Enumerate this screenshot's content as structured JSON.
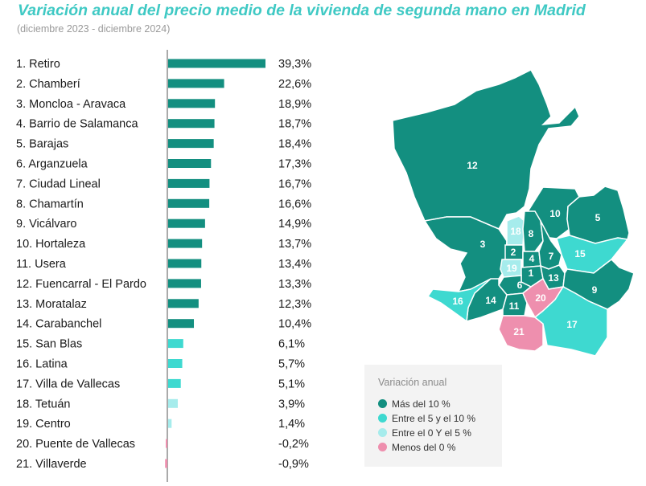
{
  "title": "Variación anual del precio medio de la vivienda de segunda mano en Madrid",
  "subtitle": "(diciembre 2023 - diciembre 2024)",
  "colors": {
    "mas10": "#138f80",
    "entre5y10": "#3ed9d0",
    "entre0y5": "#a6ecec",
    "menos0": "#ee8fae"
  },
  "chart_data": {
    "type": "bar",
    "orientation": "horizontal",
    "categories": [
      "1. Retiro",
      "2. Chamberí",
      "3. Moncloa - Aravaca",
      "4. Barrio de Salamanca",
      "5. Barajas",
      "6. Arganzuela",
      "7. Ciudad Lineal",
      "8. Chamartín",
      "9. Vicálvaro",
      "10. Hortaleza",
      "11. Usera",
      "12. Fuencarral - El Pardo",
      "13. Moratalaz",
      "14. Carabanchel",
      "15. San Blas",
      "16. Latina",
      "17. Villa de Vallecas",
      "18. Tetuán",
      "19. Centro",
      "20. Puente de Vallecas",
      "21. Villaverde"
    ],
    "values": [
      39.3,
      22.6,
      18.9,
      18.7,
      18.4,
      17.3,
      16.7,
      16.6,
      14.9,
      13.7,
      13.4,
      13.3,
      12.3,
      10.4,
      6.1,
      5.7,
      5.1,
      3.9,
      1.4,
      -0.2,
      -0.9
    ],
    "value_labels": [
      "39,3%",
      "22,6%",
      "18,9%",
      "18,7%",
      "18,4%",
      "17,3%",
      "16,7%",
      "16,6%",
      "14,9%",
      "13,7%",
      "13,4%",
      "13,3%",
      "12,3%",
      "10,4%",
      "6,1%",
      "5,7%",
      "5,1%",
      "3,9%",
      "1,4%",
      "-0,2%",
      "-0,9%"
    ],
    "xlim": [
      -2,
      40
    ],
    "grid": false
  },
  "map": {
    "district_labels": [
      "1",
      "2",
      "3",
      "4",
      "5",
      "6",
      "7",
      "8",
      "9",
      "10",
      "11",
      "12",
      "13",
      "14",
      "15",
      "16",
      "17",
      "18",
      "19",
      "20",
      "21"
    ]
  },
  "legend": {
    "title": "Variación anual",
    "items": [
      {
        "label": "Más del 10 %",
        "color": "#138f80"
      },
      {
        "label": "Entre el 5 y el 10 %",
        "color": "#3ed9d0"
      },
      {
        "label": "Entre el 0 Y el 5 %",
        "color": "#a6ecec"
      },
      {
        "label": "Menos del 0 %",
        "color": "#ee8fae"
      }
    ]
  }
}
